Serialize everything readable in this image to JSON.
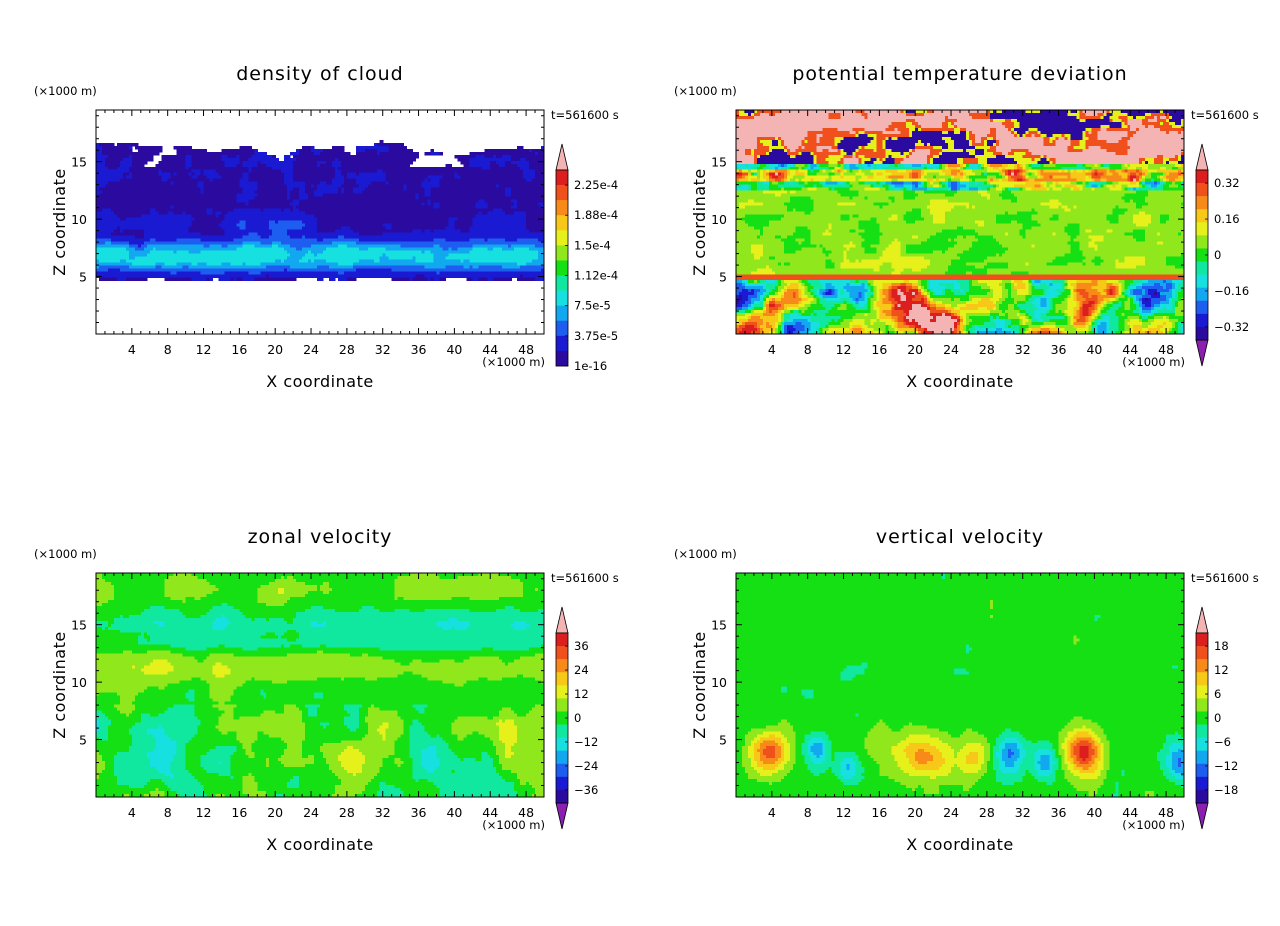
{
  "palette": [
    "#8a1fb0",
    "#2b0aa0",
    "#1a1ad2",
    "#1d5ef0",
    "#12a8f0",
    "#16e0e0",
    "#10e8a0",
    "#14e014",
    "#90e81c",
    "#e6f01a",
    "#f8c818",
    "#f88a1a",
    "#f0501c",
    "#dc1e1e",
    "#f4b4b4"
  ],
  "chart_data": [
    {
      "id": "cloud",
      "type": "heatmap",
      "title": "density of cloud",
      "xlabel": "X coordinate",
      "ylabel": "Z coordinate",
      "x_unit": "(×1000 m)",
      "y_unit": "(×1000 m)",
      "time_label": "t=561600 s",
      "xlim": [
        0,
        50
      ],
      "ylim": [
        0,
        19.5
      ],
      "x_ticks": [
        "4",
        "8",
        "12",
        "16",
        "20",
        "24",
        "28",
        "32",
        "36",
        "40",
        "44",
        "48"
      ],
      "y_ticks": [
        "5",
        "10",
        "15"
      ],
      "colorbar_labels": [
        "1e-16",
        "3.75e-5",
        "7.5e-5",
        "1.12e-4",
        "1.5e-4",
        "1.88e-4",
        "2.25e-4"
      ],
      "pattern": "cloud_layer"
    },
    {
      "id": "theta",
      "type": "heatmap",
      "title": "potential temperature deviation",
      "xlabel": "X coordinate",
      "ylabel": "Z coordinate",
      "x_unit": "(×1000 m)",
      "y_unit": "(×1000 m)",
      "time_label": "t=561600 s",
      "xlim": [
        0,
        50
      ],
      "ylim": [
        0,
        19.5
      ],
      "x_ticks": [
        "4",
        "8",
        "12",
        "16",
        "20",
        "24",
        "28",
        "32",
        "36",
        "40",
        "44",
        "48"
      ],
      "y_ticks": [
        "5",
        "10",
        "15"
      ],
      "colorbar_labels": [
        "−0.32",
        "−0.16",
        "0",
        "0.16",
        "0.32"
      ],
      "pattern": "theta_layers"
    },
    {
      "id": "zonal",
      "type": "heatmap",
      "title": "zonal velocity",
      "xlabel": "X coordinate",
      "ylabel": "Z coordinate",
      "x_unit": "(×1000 m)",
      "y_unit": "(×1000 m)",
      "time_label": "t=561600 s",
      "xlim": [
        0,
        50
      ],
      "ylim": [
        0,
        19.5
      ],
      "x_ticks": [
        "4",
        "8",
        "12",
        "16",
        "20",
        "24",
        "28",
        "32",
        "36",
        "40",
        "44",
        "48"
      ],
      "y_ticks": [
        "5",
        "10",
        "15"
      ],
      "colorbar_labels": [
        "−36",
        "−24",
        "−12",
        "0",
        "12",
        "24",
        "36"
      ],
      "pattern": "zonal_bands"
    },
    {
      "id": "vertical",
      "type": "heatmap",
      "title": "vertical velocity",
      "xlabel": "X coordinate",
      "ylabel": "Z coordinate",
      "x_unit": "(×1000 m)",
      "y_unit": "(×1000 m)",
      "time_label": "t=561600 s",
      "xlim": [
        0,
        50
      ],
      "ylim": [
        0,
        19.5
      ],
      "x_ticks": [
        "4",
        "8",
        "12",
        "16",
        "20",
        "24",
        "28",
        "32",
        "36",
        "40",
        "44",
        "48"
      ],
      "y_ticks": [
        "5",
        "10",
        "15"
      ],
      "colorbar_labels": [
        "−18",
        "−12",
        "−6",
        "0",
        "6",
        "12",
        "18"
      ],
      "pattern": "vertical_cells"
    }
  ]
}
